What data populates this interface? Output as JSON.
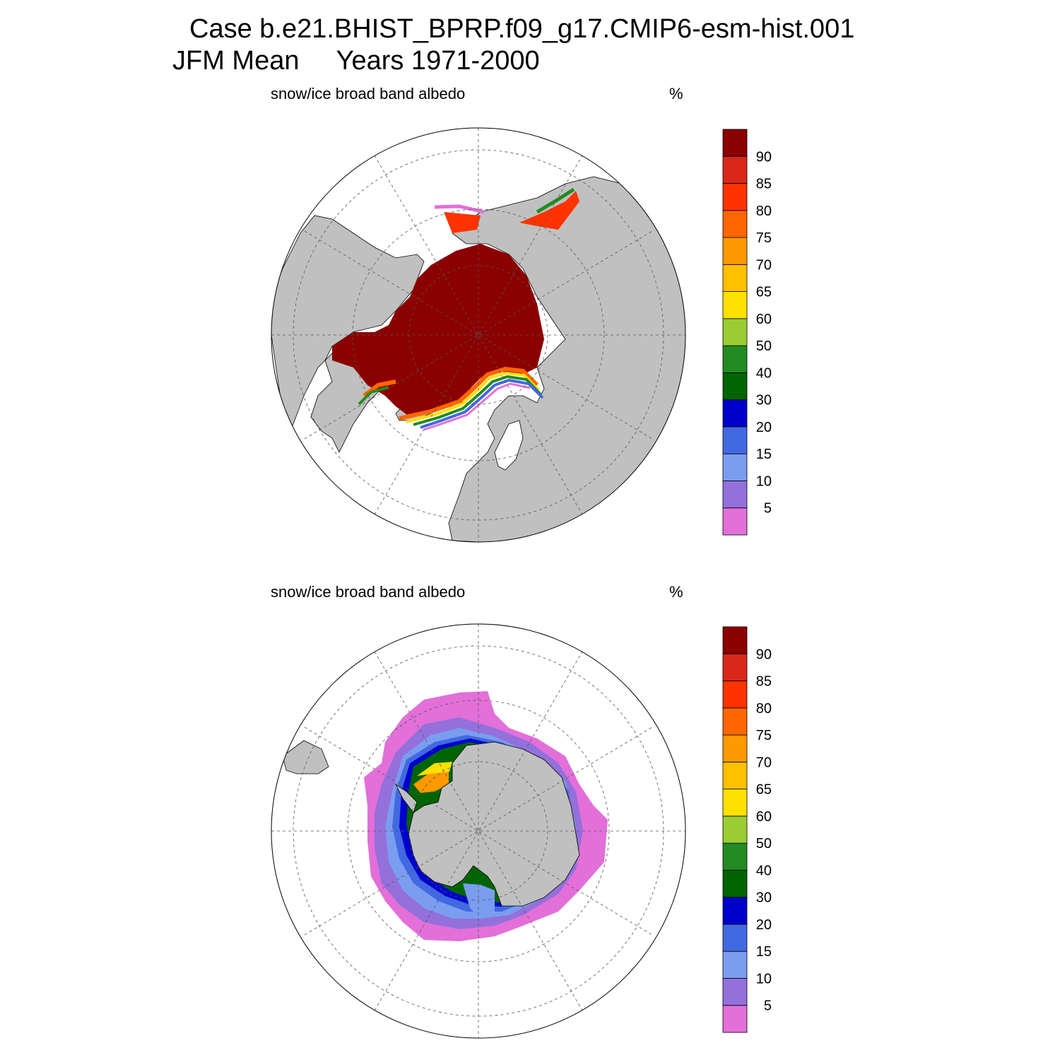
{
  "title": {
    "line1": "Case b.e21.BHIST_BPRP.f09_g17.CMIP6-esm-hist.001",
    "line2_left": "JFM Mean",
    "line2_right": "Years 1971-2000"
  },
  "panels": [
    {
      "hemisphere": "north",
      "variable_label": "snow/ice broad band albedo",
      "units": "%"
    },
    {
      "hemisphere": "south",
      "variable_label": "snow/ice broad band albedo",
      "units": "%"
    }
  ],
  "colorbar": {
    "levels": [
      "5",
      "10",
      "15",
      "20",
      "30",
      "40",
      "50",
      "60",
      "65",
      "70",
      "75",
      "80",
      "85",
      "90"
    ],
    "colors": [
      "#e36fd9",
      "#9370db",
      "#7b9df0",
      "#4169e1",
      "#0000cd",
      "#006400",
      "#228b22",
      "#9acd32",
      "#ffe000",
      "#ffc000",
      "#ff9900",
      "#ff6600",
      "#ff3300",
      "#d9281a",
      "#8b0000"
    ]
  },
  "map_colors": {
    "land": "#c0c0c0",
    "ocean": "#ffffff",
    "grid": "#555555"
  }
}
